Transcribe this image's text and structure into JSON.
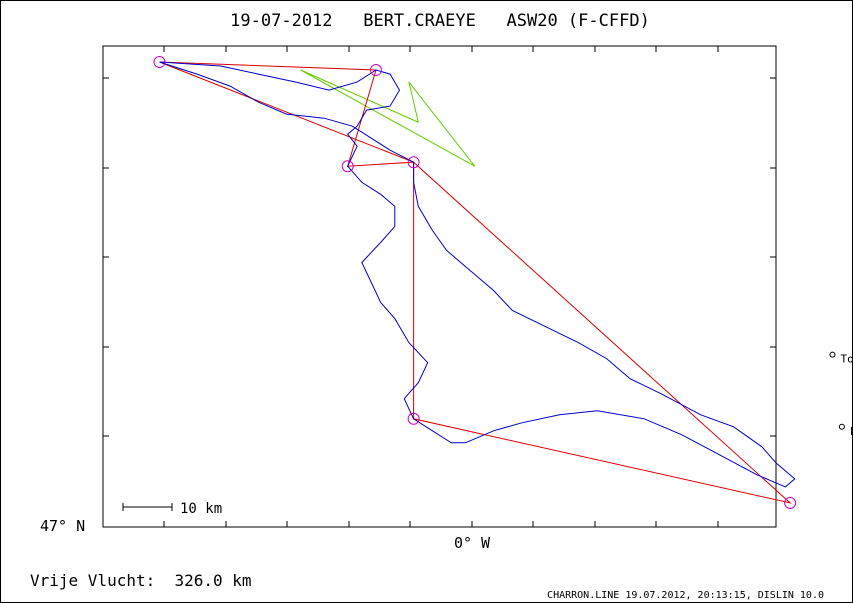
{
  "chart_data": {
    "type": "line",
    "title": "19-07-2012   BERT.CRAEYE   ASW20 (F-CFFD)",
    "xlabel": "0° W",
    "ylabel": "47° N",
    "scale_label": "10 km",
    "distance_label": "Vrije Vlucht:  326.0 km",
    "footer": "CHARRON.LINE 19.07.2012, 20:13:15, DISLIN 10.0",
    "xlim": [
      -0.85,
      0.58
    ],
    "ylim": [
      46.96,
      48.16
    ],
    "grid": false,
    "colors": {
      "track": "#0000cc",
      "task": "#dd0000",
      "alt_route": "#66cc00",
      "turnpoint": "#cc00cc"
    },
    "places": [
      {
        "name": "Tours",
        "x": 0.7,
        "y": 47.39
      },
      {
        "name": "Le Louroux",
        "x": 0.72,
        "y": 47.21
      }
    ],
    "series": [
      {
        "role": "task",
        "points": [
          [
            -0.73,
            48.12
          ],
          [
            -0.27,
            48.1
          ],
          [
            -0.33,
            47.86
          ],
          [
            -0.19,
            47.87
          ],
          [
            -0.19,
            47.23
          ],
          [
            0.61,
            47.02
          ],
          [
            -0.19,
            47.87
          ],
          [
            -0.73,
            48.12
          ]
        ]
      },
      {
        "role": "alt_route",
        "points": [
          [
            -0.43,
            48.1
          ],
          [
            -0.18,
            47.97
          ],
          [
            -0.2,
            48.07
          ],
          [
            -0.06,
            47.86
          ],
          [
            -0.43,
            48.1
          ]
        ]
      },
      {
        "role": "track",
        "points": [
          [
            -0.73,
            48.12
          ],
          [
            -0.6,
            48.11
          ],
          [
            -0.52,
            48.09
          ],
          [
            -0.44,
            48.07
          ],
          [
            -0.37,
            48.05
          ],
          [
            -0.31,
            48.07
          ],
          [
            -0.27,
            48.1
          ],
          [
            -0.24,
            48.09
          ],
          [
            -0.22,
            48.05
          ],
          [
            -0.24,
            48.01
          ],
          [
            -0.29,
            48.0
          ],
          [
            -0.31,
            47.96
          ],
          [
            -0.33,
            47.94
          ],
          [
            -0.31,
            47.91
          ],
          [
            -0.33,
            47.86
          ],
          [
            -0.3,
            47.82
          ],
          [
            -0.26,
            47.79
          ],
          [
            -0.23,
            47.76
          ],
          [
            -0.23,
            47.71
          ],
          [
            -0.26,
            47.67
          ],
          [
            -0.3,
            47.62
          ],
          [
            -0.28,
            47.57
          ],
          [
            -0.26,
            47.52
          ],
          [
            -0.23,
            47.48
          ],
          [
            -0.2,
            47.42
          ],
          [
            -0.16,
            47.37
          ],
          [
            -0.18,
            47.32
          ],
          [
            -0.21,
            47.28
          ],
          [
            -0.19,
            47.23
          ],
          [
            -0.15,
            47.2
          ],
          [
            -0.11,
            47.17
          ],
          [
            -0.08,
            47.17
          ],
          [
            -0.02,
            47.2
          ],
          [
            0.04,
            47.22
          ],
          [
            0.12,
            47.24
          ],
          [
            0.2,
            47.25
          ],
          [
            0.3,
            47.23
          ],
          [
            0.38,
            47.19
          ],
          [
            0.46,
            47.14
          ],
          [
            0.54,
            47.09
          ],
          [
            0.6,
            47.06
          ],
          [
            0.62,
            47.08
          ],
          [
            0.58,
            47.12
          ],
          [
            0.55,
            47.16
          ],
          [
            0.49,
            47.21
          ],
          [
            0.42,
            47.24
          ],
          [
            0.34,
            47.29
          ],
          [
            0.27,
            47.33
          ],
          [
            0.22,
            47.38
          ],
          [
            0.16,
            47.42
          ],
          [
            0.09,
            47.46
          ],
          [
            0.02,
            47.5
          ],
          [
            -0.02,
            47.55
          ],
          [
            -0.07,
            47.6
          ],
          [
            -0.12,
            47.65
          ],
          [
            -0.15,
            47.7
          ],
          [
            -0.18,
            47.76
          ],
          [
            -0.19,
            47.82
          ],
          [
            -0.19,
            47.87
          ],
          [
            -0.24,
            47.9
          ],
          [
            -0.28,
            47.93
          ],
          [
            -0.32,
            47.96
          ],
          [
            -0.38,
            47.98
          ],
          [
            -0.46,
            47.99
          ],
          [
            -0.52,
            48.02
          ],
          [
            -0.58,
            48.06
          ],
          [
            -0.65,
            48.09
          ],
          [
            -0.73,
            48.12
          ]
        ]
      }
    ],
    "turnpoints": [
      {
        "x": -0.73,
        "y": 48.12
      },
      {
        "x": -0.27,
        "y": 48.1
      },
      {
        "x": -0.33,
        "y": 47.86
      },
      {
        "x": -0.19,
        "y": 47.87
      },
      {
        "x": -0.19,
        "y": 47.23
      },
      {
        "x": 0.61,
        "y": 47.02
      }
    ]
  }
}
